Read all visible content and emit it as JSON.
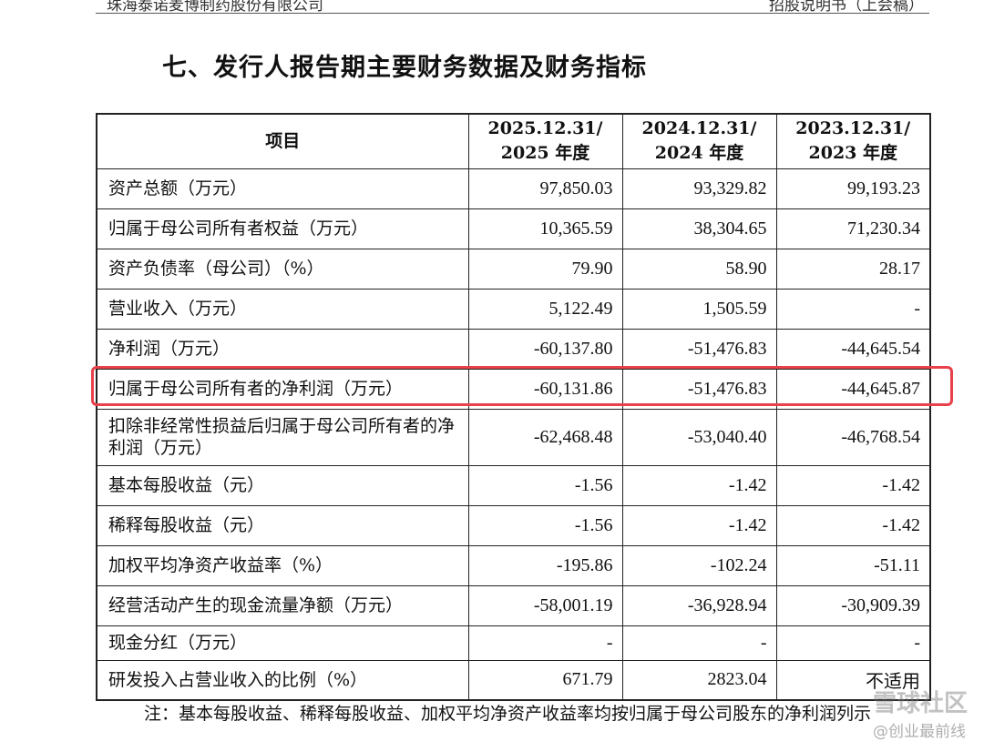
{
  "header": {
    "company": "珠海泰诺麦博制药股份有限公司",
    "doc_type": "招股说明书（上会稿）"
  },
  "section_title": "七、发行人报告期主要财务数据及财务指标",
  "table": {
    "columns": [
      {
        "label": "项目"
      },
      {
        "line1": "2025.12.31/",
        "line2": "2025 年度"
      },
      {
        "line1": "2024.12.31/",
        "line2": "2024 年度"
      },
      {
        "line1": "2023.12.31/",
        "line2": "2023 年度"
      }
    ],
    "rows": [
      {
        "item": "资产总额（万元）",
        "v2025": "97,850.03",
        "v2024": "93,329.82",
        "v2023": "99,193.23"
      },
      {
        "item": "归属于母公司所有者权益（万元）",
        "v2025": "10,365.59",
        "v2024": "38,304.65",
        "v2023": "71,230.34"
      },
      {
        "item": "资产负债率（母公司）（%）",
        "v2025": "79.90",
        "v2024": "58.90",
        "v2023": "28.17"
      },
      {
        "item": "营业收入（万元）",
        "v2025": "5,122.49",
        "v2024": "1,505.59",
        "v2023": "-"
      },
      {
        "item": "净利润（万元）",
        "v2025": "-60,137.80",
        "v2024": "-51,476.83",
        "v2023": "-44,645.54"
      },
      {
        "item": "归属于母公司所有者的净利润（万元）",
        "v2025": "-60,131.86",
        "v2024": "-51,476.83",
        "v2023": "-44,645.87"
      },
      {
        "item": "扣除非经常性损益后归属于母公司所有者的净利润（万元）",
        "v2025": "-62,468.48",
        "v2024": "-53,040.40",
        "v2023": "-46,768.54"
      },
      {
        "item": "基本每股收益（元）",
        "v2025": "-1.56",
        "v2024": "-1.42",
        "v2023": "-1.42"
      },
      {
        "item": "稀释每股收益（元）",
        "v2025": "-1.56",
        "v2024": "-1.42",
        "v2023": "-1.42"
      },
      {
        "item": "加权平均净资产收益率（%）",
        "v2025": "-195.86",
        "v2024": "-102.24",
        "v2023": "-51.11"
      },
      {
        "item": "经营活动产生的现金流量净额（万元）",
        "v2025": "-58,001.19",
        "v2024": "-36,928.94",
        "v2023": "-30,909.39"
      },
      {
        "item": "现金分红（万元）",
        "v2025": "-",
        "v2024": "-",
        "v2023": "-"
      },
      {
        "item": "研发投入占营业收入的比例（%）",
        "v2025": "671.79",
        "v2024": "2823.04",
        "v2023": "不适用"
      }
    ]
  },
  "highlight_color": "#e8414b",
  "note": "注：基本每股收益、稀释每股收益、加权平均净资产收益率均按归属于母公司股东的净利润列示",
  "watermark": {
    "line1": "雪球社区",
    "line2": "@创业最前线"
  }
}
